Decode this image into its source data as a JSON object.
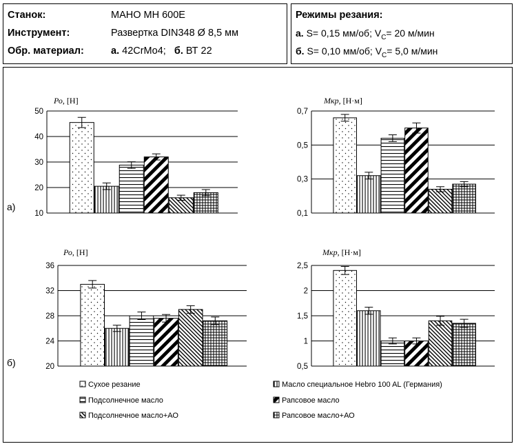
{
  "header": {
    "machine_label": "Станок:",
    "machine_value": "МАНО МН 600Е",
    "tool_label": "Инструмент:",
    "tool_value": "Развертка DIN348 Ø 8,5 мм",
    "material_label": "Обр. материал:",
    "material_a_prefix": "а.",
    "material_a": "42CrMo4;",
    "material_b_prefix": "б.",
    "material_b": "ВТ 22",
    "modes_title": "Режимы резания:",
    "mode_a_prefix": "а.",
    "mode_a_s": "S= 0,15 мм/об; V",
    "mode_a_sub": "C",
    "mode_a_v": "= 20 м/мин",
    "mode_b_prefix": "б.",
    "mode_b_s": "S= 0,10 мм/об; V",
    "mode_b_sub": "C",
    "mode_b_v": "= 5,0 м/мин"
  },
  "panel_labels": {
    "a": "а)",
    "b": "б)"
  },
  "legend": [
    "Сухое резание",
    "Масло специальное Hebro 100 AL (Германия)",
    "Подсолнечное масло",
    "Рапсовое масло",
    "Подсолнечное масло+АО",
    "Рапсовое масло+АО"
  ],
  "patterns": [
    "dots",
    "vlines",
    "hlines",
    "diag-thick",
    "diag-thin",
    "grid"
  ],
  "chart_data": [
    {
      "type": "bar",
      "panel": "а)",
      "ylabel": "Ро, [Н]",
      "ylim": [
        10,
        50
      ],
      "yticks": [
        "10",
        "20",
        "30",
        "40",
        "50"
      ],
      "values": [
        45.5,
        20.5,
        28.8,
        32.0,
        16.0,
        18.0
      ],
      "errors": [
        2.0,
        1.3,
        1.3,
        1.2,
        1.0,
        1.2
      ]
    },
    {
      "type": "bar",
      "panel": "а)",
      "ylabel": "Мкр, [Н·м]",
      "ylim": [
        0.1,
        0.7
      ],
      "yticks": [
        "0,1",
        "0,3",
        "0,5",
        "0,7"
      ],
      "values": [
        0.66,
        0.32,
        0.54,
        0.6,
        0.24,
        0.27
      ],
      "errors": [
        0.02,
        0.02,
        0.02,
        0.03,
        0.015,
        0.015
      ]
    },
    {
      "type": "bar",
      "panel": "б)",
      "ylabel": "Ро, [Н]",
      "ylim": [
        20,
        36
      ],
      "yticks": [
        "20",
        "24",
        "28",
        "32",
        "36"
      ],
      "values": [
        33.0,
        26.0,
        28.0,
        27.6,
        29.0,
        27.2
      ],
      "errors": [
        0.6,
        0.5,
        0.6,
        0.6,
        0.6,
        0.6
      ]
    },
    {
      "type": "bar",
      "panel": "б)",
      "ylabel": "Мкр, [Н·м]",
      "ylim": [
        0.5,
        2.5
      ],
      "yticks": [
        "0,5",
        "1",
        "1,5",
        "2",
        "2,5"
      ],
      "values": [
        2.4,
        1.6,
        1.0,
        1.0,
        1.4,
        1.35
      ],
      "errors": [
        0.08,
        0.07,
        0.06,
        0.06,
        0.09,
        0.08
      ]
    }
  ]
}
